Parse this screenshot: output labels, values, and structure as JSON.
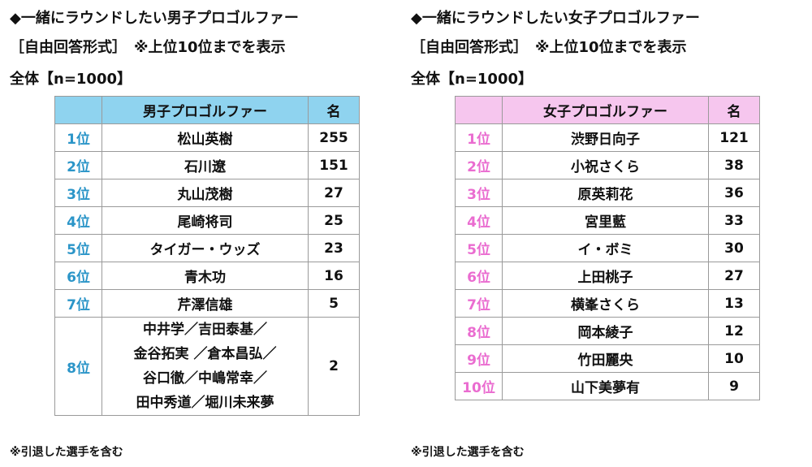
{
  "men": {
    "title": "◆一緒にラウンドしたい男子プロゴルファー",
    "subtitle": "［自由回答形式］　※上位10位までを表示",
    "total": "全体【n=1000】",
    "header": {
      "rank": "",
      "name": "男子プロゴルファー",
      "count": "名"
    },
    "rows": [
      {
        "rank": "1位",
        "name": "松山英樹",
        "count": "255"
      },
      {
        "rank": "2位",
        "name": "石川遼",
        "count": "151"
      },
      {
        "rank": "3位",
        "name": "丸山茂樹",
        "count": "27"
      },
      {
        "rank": "4位",
        "name": "尾崎将司",
        "count": "25"
      },
      {
        "rank": "5位",
        "name": "タイガー・ウッズ",
        "count": "23"
      },
      {
        "rank": "6位",
        "name": "青木功",
        "count": "16"
      },
      {
        "rank": "7位",
        "name": "芹澤信雄",
        "count": "5"
      }
    ],
    "tie_row": {
      "rank": "8位",
      "lines": [
        "中井学／吉田泰基／",
        "金谷拓実 ／倉本昌弘／",
        "谷口徹／中嶋常幸／",
        "田中秀道／堀川未来夢"
      ],
      "count": "2"
    },
    "note": "※引退した選手を含む"
  },
  "women": {
    "title": "◆一緒にラウンドしたい女子プロゴルファー",
    "subtitle": "［自由回答形式］　※上位10位までを表示",
    "total": "全体【n=1000】",
    "header": {
      "rank": "",
      "name": "女子プロゴルファー",
      "count": "名"
    },
    "rows": [
      {
        "rank": "1位",
        "name": "渋野日向子",
        "count": "121"
      },
      {
        "rank": "2位",
        "name": "小祝さくら",
        "count": "38"
      },
      {
        "rank": "3位",
        "name": "原英莉花",
        "count": "36"
      },
      {
        "rank": "4位",
        "name": "宮里藍",
        "count": "33"
      },
      {
        "rank": "5位",
        "name": "イ・ボミ",
        "count": "30"
      },
      {
        "rank": "6位",
        "name": "上田桃子",
        "count": "27"
      },
      {
        "rank": "7位",
        "name": "横峯さくら",
        "count": "13"
      },
      {
        "rank": "8位",
        "name": "岡本綾子",
        "count": "12"
      },
      {
        "rank": "9位",
        "name": "竹田麗央",
        "count": "10"
      },
      {
        "rank": "10位",
        "name": "山下美夢有",
        "count": "9"
      }
    ],
    "note": "※引退した選手を含む"
  },
  "colors": {
    "men_header": "#8fd3ef",
    "men_rank_text": "#2b95c8",
    "women_header": "#f6c6ee",
    "women_rank_text": "#ea6cd0"
  }
}
